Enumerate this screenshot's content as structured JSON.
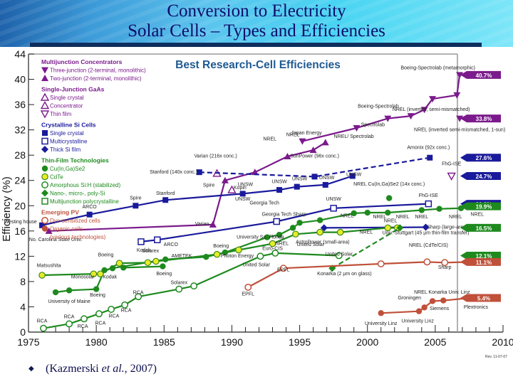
{
  "slide": {
    "title_line1": "Conversion to Electricity",
    "title_line2": "Solar Cells – Types and Efficiencies",
    "citation_prefix": "(Kazmerski ",
    "citation_italic": "et al.",
    "citation_suffix": ", 2007)",
    "revision": "Rev. 11-07-07"
  },
  "chart_data": {
    "type": "line",
    "title": "Best Research-Cell Efficiencies",
    "xlabel": "",
    "ylabel": "Efficiency (%)",
    "xlim": [
      1975,
      2010
    ],
    "ylim": [
      0,
      44
    ],
    "xticks": [
      1975,
      1980,
      1985,
      1990,
      1995,
      2000,
      2005,
      2010
    ],
    "yticks": [
      0,
      4,
      8,
      12,
      16,
      20,
      24,
      28,
      32,
      36,
      40,
      44
    ],
    "grid": false,
    "legend_position": "top-left",
    "legend": [
      {
        "group": "Multijunction Concentrators",
        "color": "#7b1a8c",
        "items": [
          {
            "label": "Three-junction (2-terminal, monolithic)",
            "marker": "triangle-down-filled"
          },
          {
            "label": "Two-junction (2-terminal, monolithic)",
            "marker": "triangle-up-filled"
          }
        ]
      },
      {
        "group": "Single-Junction GaAs",
        "color": "#7b1a8c",
        "items": [
          {
            "label": "Single crystal",
            "marker": "triangle-up-open"
          },
          {
            "label": "Concentrator",
            "marker": "triangle-up-open"
          },
          {
            "label": "Thin film",
            "marker": "triangle-down-open"
          }
        ]
      },
      {
        "group": "Crystalline Si Cells",
        "color": "#1a1a9c",
        "items": [
          {
            "label": "Single crystal",
            "marker": "square-filled"
          },
          {
            "label": "Multicrystalline",
            "marker": "square-open"
          },
          {
            "label": "Thick Si film",
            "marker": "diamond-filled"
          }
        ]
      },
      {
        "group": "Thin-Film Technologies",
        "color": "#1e8a1e",
        "items": [
          {
            "label": "Cu(In,Ga)Se2",
            "marker": "circle-filled"
          },
          {
            "label": "CdTe",
            "marker": "circle-yellow"
          },
          {
            "label": "Amorphous Si:H (stabilized)",
            "marker": "circle-open"
          },
          {
            "label": "Nano-, micro-, poly-Si",
            "marker": "diamond-filled"
          },
          {
            "label": "Multijunction polycrystalline",
            "marker": "square-open"
          }
        ]
      },
      {
        "group": "Emerging PV",
        "color": "#c0503a",
        "items": [
          {
            "label": "Dye-sensitized cells",
            "marker": "circle-open"
          },
          {
            "label": "Organic cells",
            "marker": "circle-filled"
          },
          {
            "label": "(various technologies)",
            "marker": "none"
          }
        ]
      }
    ],
    "series": [
      {
        "name": "Three-junction concentrator",
        "color": "#7b1a8c",
        "marker": "tri-down",
        "dash": false,
        "x": [
          1995.2,
          1999.2,
          2001.5,
          2003.2,
          2004.2,
          2004.8,
          2006.6,
          2006.8
        ],
        "y": [
          30.2,
          32.3,
          33.8,
          34.2,
          35.2,
          36.9,
          37.5,
          40.7
        ]
      },
      {
        "name": "Two-junction concentrator",
        "color": "#7b1a8c",
        "marker": "tri-up",
        "dash": false,
        "x": [
          1988.6,
          1989.5,
          1991.7,
          1994.1,
          1996.0,
          1996.9
        ],
        "y": [
          17.0,
          24.0,
          25.3,
          27.8,
          28.8,
          30.0
        ]
      },
      {
        "name": "Two-junction drop line",
        "color": "#7b1a8c",
        "marker": "tri-up",
        "dash": false,
        "x": [
          1976.5,
          1988.6
        ],
        "y": [
          16.0,
          17.0
        ]
      },
      {
        "name": "GaAs concentrator",
        "color": "#7b1a8c",
        "marker": "tri-up-open",
        "dash": false,
        "x": [
          1988.9
        ],
        "y": [
          25.1
        ]
      },
      {
        "name": "GaAs single crystal (Kopin)",
        "color": "#7b1a8c",
        "marker": "tri-up-open",
        "dash": false,
        "x": [
          1990.0
        ],
        "y": [
          22.5
        ]
      },
      {
        "name": "GaAs thin film (FhG-ISE)",
        "color": "#7b1a8c",
        "marker": "tri-down-open",
        "dash": false,
        "x": [
          2006.2
        ],
        "y": [
          24.7
        ]
      },
      {
        "name": "NREL inverted semi-mismatched 1-sun",
        "color": "#7b1a8c",
        "marker": "tri-down",
        "dash": false,
        "x": [
          2006.8
        ],
        "y": [
          33.8
        ]
      },
      {
        "name": "Single crystal Si",
        "color": "#1a1a9c",
        "marker": "square",
        "dash": false,
        "x": [
          1976.0,
          1979.5,
          1982.9,
          1985.1,
          1990.8,
          1993.5,
          1994.8,
          1996.9,
          1998.9
        ],
        "y": [
          16.9,
          18.6,
          20.0,
          20.9,
          21.9,
          22.5,
          23.0,
          23.3,
          24.7
        ]
      },
      {
        "name": "Si concentrator (dashed)",
        "color": "#1a1a9c",
        "marker": "square",
        "dash": true,
        "x": [
          1987.6,
          1996.1,
          2004.6
        ],
        "y": [
          25.3,
          24.6,
          27.6
        ]
      },
      {
        "name": "Multicrystalline Si",
        "color": "#1a1a9c",
        "marker": "square-open",
        "dash": false,
        "x": [
          1983.3,
          1984.5,
          1993.3,
          1997.5,
          2004.5
        ],
        "y": [
          14.3,
          14.6,
          17.5,
          19.6,
          20.3
        ]
      },
      {
        "name": "Thick Si film",
        "color": "#1a1a9c",
        "marker": "diamond",
        "dash": false,
        "x": [
          1996.8,
          2004.3
        ],
        "y": [
          16.5,
          16.6
        ]
      },
      {
        "name": "CIGS",
        "color": "#1e8a1e",
        "marker": "circle",
        "dash": false,
        "x": [
          1977.0,
          1978.0,
          1980.0,
          1980.6,
          1981.2,
          1985.1,
          1988.1,
          1989.5,
          1992.6,
          1993.5,
          1994.5,
          1995.0,
          1996.5,
          1999.0,
          2000.0,
          2001.5,
          2004.0,
          2005.3,
          2006.9,
          2008.6
        ],
        "y": [
          6.3,
          6.6,
          6.8,
          9.8,
          10.1,
          11.5,
          11.9,
          12.6,
          15.0,
          15.4,
          16.5,
          17.3,
          17.7,
          18.8,
          18.9,
          18.9,
          19.3,
          19.5,
          19.6,
          19.9
        ]
      },
      {
        "name": "CIGS (concentrator)",
        "color": "#1e8a1e",
        "marker": "circle",
        "dash": false,
        "x": [
          2001.6
        ],
        "y": [
          21.2
        ]
      },
      {
        "name": "CIGS (Boeing)",
        "color": "#1e8a1e",
        "marker": "circle",
        "dash": false,
        "x": [
          1982.0,
          1984.9
        ],
        "y": [
          10.2,
          10.4
        ]
      },
      {
        "name": "CdTe",
        "color": "#1e8a1e",
        "marker": "circle-yellow",
        "dash": false,
        "x": [
          1976.0,
          1979.8,
          1980.3,
          1981.7,
          1983.8,
          1984.4,
          1988.9,
          1990.5,
          1993.0,
          1994.7,
          1996.5,
          1998.0,
          2001.5,
          2002.2
        ],
        "y": [
          9.0,
          9.2,
          9.2,
          10.9,
          11.0,
          11.2,
          12.3,
          13.0,
          14.0,
          15.5,
          15.8,
          15.8,
          16.5,
          16.5
        ]
      },
      {
        "name": "Amorphous Si:H",
        "color": "#1e8a1e",
        "marker": "circle-open",
        "dash": false,
        "x": [
          1976.1,
          1978.0,
          1979.1,
          1980.2,
          1981.1,
          1982.1,
          1983.1,
          1986.1,
          1987.2,
          1992.1,
          1993.2,
          1997.9
        ],
        "y": [
          0.6,
          1.3,
          2.1,
          2.9,
          3.6,
          4.3,
          5.6,
          6.8,
          7.3,
          12.0,
          12.5,
          12.1
        ]
      },
      {
        "name": "Nano/micro/poly-Si (dashed)",
        "color": "#1e8a1e",
        "marker": "diamond",
        "dash": true,
        "x": [
          1997.4,
          2002.4
        ],
        "y": [
          10.1,
          16.5
        ]
      },
      {
        "name": "Dye-sensitized cells",
        "color": "#c0503a",
        "marker": "circle-open",
        "dash": false,
        "x": [
          1991.2,
          1993.8,
          2001.0,
          2004.4,
          2005.7,
          2007.6
        ],
        "y": [
          7.1,
          10.1,
          10.8,
          11.1,
          11.0,
          11.1
        ]
      },
      {
        "name": "Organic cells",
        "color": "#c0503a",
        "marker": "circle",
        "dash": false,
        "x": [
          2001.0,
          2003.8,
          2004.2,
          2004.8,
          2005.6,
          2007.6
        ],
        "y": [
          3.0,
          3.3,
          3.9,
          4.9,
          5.0,
          5.4
        ]
      }
    ],
    "record_tags": [
      {
        "label": "40.7%",
        "value": 40.7,
        "color": "#7b1a8c"
      },
      {
        "label": "33.8%",
        "value": 33.8,
        "color": "#7b1a8c"
      },
      {
        "label": "27.6%",
        "value": 27.6,
        "color": "#1a1a9c"
      },
      {
        "label": "24.7%",
        "value": 24.7,
        "color": "#1a1a9c"
      },
      {
        "label": "20.3%",
        "value": 20.3,
        "color": "#1a1a9c"
      },
      {
        "label": "19.9%",
        "value": 19.9,
        "color": "#1e8a1e"
      },
      {
        "label": "16.5%",
        "value": 16.5,
        "color": "#1e8a1e"
      },
      {
        "label": "12.1%",
        "value": 12.1,
        "color": "#1e8a1e"
      },
      {
        "label": "11.1%",
        "value": 11.1,
        "color": "#c0503a"
      },
      {
        "label": "5.4%",
        "value": 5.4,
        "color": "#c0503a"
      }
    ],
    "annotations": [
      {
        "text": "Boeing-Spectrolab (metamorphic)",
        "x": 2005.2,
        "y": 41.6
      },
      {
        "text": "Boeing-Spectrolab",
        "x": 2000.8,
        "y": 35.5
      },
      {
        "text": "NREL (inverted, semi-mismatched)",
        "x": 2004.7,
        "y": 35.0
      },
      {
        "text": "Spectrolab",
        "x": 2000.4,
        "y": 32.6
      },
      {
        "text": "NREL (inverted semi-mismatched, 1-sun)",
        "x": 2006.8,
        "y": 31.8
      },
      {
        "text": "Japan Energy",
        "x": 1995.5,
        "y": 31.3
      },
      {
        "text": "NREL",
        "x": 1994.5,
        "y": 31.0
      },
      {
        "text": "NREL/ Spectrolab",
        "x": 1999.0,
        "y": 30.7
      },
      {
        "text": "NREL",
        "x": 1992.8,
        "y": 30.3
      },
      {
        "text": "Varian (216x conc.)",
        "x": 1988.8,
        "y": 27.6
      },
      {
        "text": "SunPower (96x conc.)",
        "x": 1996.1,
        "y": 27.6
      },
      {
        "text": "Amonix (92x conc.)",
        "x": 2004.5,
        "y": 29.0
      },
      {
        "text": "Stanford (140x conc.)",
        "x": 1985.7,
        "y": 25.1
      },
      {
        "text": "Kopin",
        "x": 1990.6,
        "y": 22.6
      },
      {
        "text": "Spire",
        "x": 1988.3,
        "y": 23.0
      },
      {
        "text": "FhG-ISE",
        "x": 2006.2,
        "y": 26.4
      },
      {
        "text": "UNSW",
        "x": 1991.0,
        "y": 23.1
      },
      {
        "text": "UNSW",
        "x": 1993.5,
        "y": 23.6
      },
      {
        "text": "UNSW",
        "x": 1995.0,
        "y": 24.0
      },
      {
        "text": "UNSW",
        "x": 1997.0,
        "y": 24.2
      },
      {
        "text": "UNSW",
        "x": 1999.0,
        "y": 24.7
      },
      {
        "text": "NREL Cu(In,Ga)Se2 (14x conc.)",
        "x": 2001.6,
        "y": 23.2
      },
      {
        "text": "Spire",
        "x": 1982.9,
        "y": 21.0
      },
      {
        "text": "Stanford",
        "x": 1985.1,
        "y": 21.7
      },
      {
        "text": "UNSW",
        "x": 1990.8,
        "y": 20.8
      },
      {
        "text": "ARCO",
        "x": 1979.5,
        "y": 19.6
      },
      {
        "text": "Westing house",
        "x": 1974.4,
        "y": 17.2
      },
      {
        "text": "Varian",
        "x": 1987.8,
        "y": 16.9
      },
      {
        "text": "No. Carolina State Univ.",
        "x": 1977.0,
        "y": 14.4
      },
      {
        "text": "Georgia Tech",
        "x": 1992.4,
        "y": 20.2
      },
      {
        "text": "Georgia Tech",
        "x": 1993.3,
        "y": 18.4
      },
      {
        "text": "Sharp",
        "x": 1995.0,
        "y": 18.4
      },
      {
        "text": "UNSW",
        "x": 1997.5,
        "y": 20.8
      },
      {
        "text": "FhG-ISE",
        "x": 2004.5,
        "y": 21.4
      },
      {
        "text": "Solarex",
        "x": 1984.0,
        "y": 12.6
      },
      {
        "text": "University So. Florida",
        "x": 1992.1,
        "y": 14.8
      },
      {
        "text": "NREL",
        "x": 1998.5,
        "y": 18.2
      },
      {
        "text": "NREL",
        "x": 2000.9,
        "y": 18.0
      },
      {
        "text": "NREL",
        "x": 2002.6,
        "y": 18.0
      },
      {
        "text": "NREL",
        "x": 2004.0,
        "y": 18.0
      },
      {
        "text": "NREL",
        "x": 2006.5,
        "y": 18.0
      },
      {
        "text": "NREL",
        "x": 2008.1,
        "y": 18.4
      },
      {
        "text": "NREL",
        "x": 2001.7,
        "y": 17.4
      },
      {
        "text": "NREL",
        "x": 1999.9,
        "y": 15.6
      },
      {
        "text": "NREL",
        "x": 1993.7,
        "y": 13.8
      },
      {
        "text": "Univ. Stuttgart (45 µm thin-film transfer)",
        "x": 2004.3,
        "y": 15.5
      },
      {
        "text": "Sharp (large-area)",
        "x": 2005.9,
        "y": 16.4
      },
      {
        "text": "NREL (CdTe/CIS)",
        "x": 2004.5,
        "y": 13.5
      },
      {
        "text": "AstroPower (small-area)",
        "x": 1996.7,
        "y": 14.0
      },
      {
        "text": "Euro-CIS",
        "x": 1993.0,
        "y": 13.0
      },
      {
        "text": "Boeing",
        "x": 1989.2,
        "y": 13.4
      },
      {
        "text": "Photon Energy",
        "x": 1990.4,
        "y": 11.8
      },
      {
        "text": "AMETEK",
        "x": 1986.3,
        "y": 11.8
      },
      {
        "text": "ARCO",
        "x": 1985.5,
        "y": 13.6
      },
      {
        "text": "Kodak",
        "x": 1983.5,
        "y": 12.7
      },
      {
        "text": "Boeing",
        "x": 1985.0,
        "y": 9.0
      },
      {
        "text": "Kodak",
        "x": 1981.0,
        "y": 8.5
      },
      {
        "text": "Boeing",
        "x": 1980.7,
        "y": 12.0
      },
      {
        "text": "Matsushita",
        "x": 1976.5,
        "y": 10.3
      },
      {
        "text": "Monosolar",
        "x": 1979.0,
        "y": 8.5
      },
      {
        "text": "Boeing",
        "x": 1980.1,
        "y": 5.6
      },
      {
        "text": "University of Maine",
        "x": 1978.0,
        "y": 4.6
      },
      {
        "text": "Solarex",
        "x": 1986.1,
        "y": 7.6
      },
      {
        "text": "United Solar",
        "x": 1991.8,
        "y": 10.4
      },
      {
        "text": "United Solar",
        "x": 1997.9,
        "y": 12.1
      },
      {
        "text": "United Solar",
        "x": 1995.8,
        "y": 13.6
      },
      {
        "text": "RCA",
        "x": 1976.0,
        "y": 1.5
      },
      {
        "text": "RCA",
        "x": 1978.0,
        "y": 2.2
      },
      {
        "text": "RCA",
        "x": 1979.0,
        "y": 0.7
      },
      {
        "text": "RCA",
        "x": 1980.3,
        "y": 1.2
      },
      {
        "text": "RCA",
        "x": 1981.3,
        "y": 2.3
      },
      {
        "text": "RCA",
        "x": 1982.2,
        "y": 3.2
      },
      {
        "text": "RCA",
        "x": 1983.1,
        "y": 6.0
      },
      {
        "text": "EPFL",
        "x": 1991.2,
        "y": 5.8
      },
      {
        "text": "EPFL",
        "x": 1993.8,
        "y": 9.6
      },
      {
        "text": "Konarka (2 µm on glass)",
        "x": 1998.3,
        "y": 9.0
      },
      {
        "text": "Sharp",
        "x": 2005.7,
        "y": 10.0
      },
      {
        "text": "Groningen",
        "x": 2003.1,
        "y": 5.2
      },
      {
        "text": "NREL Konarka Univ. Linz",
        "x": 2005.5,
        "y": 6.1
      },
      {
        "text": "Siemens",
        "x": 2005.3,
        "y": 3.5
      },
      {
        "text": "Plextronics",
        "x": 2008.0,
        "y": 3.7
      },
      {
        "text": "University Linz",
        "x": 2001.0,
        "y": 1.1
      },
      {
        "text": "University Linz",
        "x": 2003.7,
        "y": 1.5
      }
    ]
  }
}
